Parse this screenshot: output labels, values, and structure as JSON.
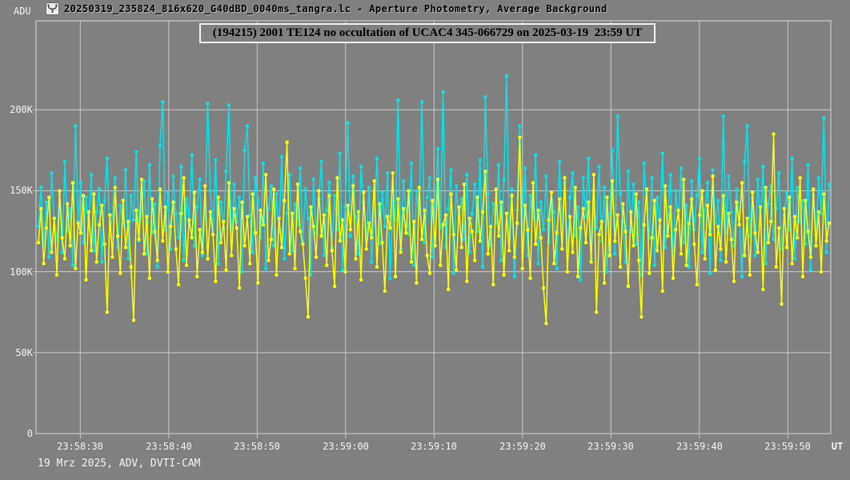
{
  "window": {
    "title": "20250319_235824_816x620_G40dBD_0040ms_tangra.lc - Aperture Photometry, Average Background",
    "app_icon": "tangra-app-icon"
  },
  "footer": {
    "text": "19 Mrz 2025, ADV, DVTI-CAM"
  },
  "colors": {
    "background": "#808080",
    "grid": "#c9c9c9",
    "axis_text": "#f2f2f2",
    "series_cyan": "#00e5ee",
    "series_yellow": "#ffff00"
  },
  "chart_data": {
    "type": "line",
    "title": "(194215) 2001 TE124 no occultation of UCAC4 345-066729 on 2025-03-19  23:59 UT",
    "ylabel": "ADU",
    "xlabel": "UT",
    "grid": true,
    "legend": "none",
    "x_range": [
      "23:58:25",
      "23:59:55"
    ],
    "ylim_kadu": [
      0,
      255
    ],
    "y_gridline_values_kadu": [
      50,
      100,
      150,
      200
    ],
    "y_tick_labels": [
      "0",
      "50K",
      "100K",
      "150K",
      "200K"
    ],
    "x_tick_labels": [
      "23:58:30",
      "23:58:40",
      "23:58:50",
      "23:59:00",
      "23:59:10",
      "23:59:20",
      "23:59:30",
      "23:59:40",
      "23:59:50"
    ],
    "series": [
      {
        "name": "photometry-series-cyan",
        "color": "#00e5ee",
        "unit": "kADU",
        "values_kadu": [
          128,
          152,
          117,
          143,
          109,
          161,
          133,
          120,
          148,
          112,
          168,
          125,
          139,
          104,
          190,
          131,
          155,
          118,
          146,
          127,
          160,
          113,
          137,
          151,
          106,
          144,
          170,
          122,
          135,
          158,
          115,
          141,
          129,
          163,
          108,
          147,
          132,
          174,
          119,
          138,
          156,
          111,
          166,
          124,
          142,
          103,
          178,
          205,
          126,
          149,
          114,
          159,
          136,
          121,
          165,
          107,
          145,
          130,
          172,
          116,
          140,
          157,
          110,
          134,
          204,
          150,
          123,
          169,
          105,
          143,
          127,
          162,
          203,
          118,
          154,
          131,
          146,
          100,
          175,
          190,
          135,
          112,
          158,
          144,
          121,
          167,
          102,
          139,
          153,
          116,
          148,
          125,
          171,
          108,
          136,
          160,
          113,
          142,
          129,
          164,
          119,
          151,
          133,
          98,
          157,
          124,
          145,
          168,
          110,
          138,
          155,
          115,
          147,
          126,
          173,
          101,
          140,
          192,
          122,
          159,
          134,
          111,
          165,
          143,
          120,
          152,
          106,
          137,
          170,
          117,
          149,
          128,
          161,
          96,
          144,
          132,
          206,
          114,
          156,
          138,
          123,
          167,
          104,
          150,
          135,
          205,
          118,
          146,
          158,
          109,
          141,
          176,
          127,
          211,
          115,
          139,
          163,
          99,
          153,
          131,
          145,
          120,
          160,
          112,
          136,
          154,
          125,
          169,
          103,
          208,
          148,
          116,
          142,
          130,
          166,
          107,
          157,
          221,
          121,
          151,
          97,
          138,
          190,
          124,
          164,
          110,
          147,
          133,
          172,
          105,
          143,
          126,
          159,
          118,
          149,
          137,
          102,
          168,
          129,
          155,
          113,
          146,
          161,
          122,
          140,
          95,
          158,
          134,
          170,
          108,
          144,
          127,
          165,
          119,
          152,
          100,
          136,
          175,
          111,
          196,
          148,
          131,
          106,
          162,
          125,
          154,
          117,
          143,
          98,
          167,
          139,
          121,
          158,
          104,
          146,
          128,
          173,
          115,
          135,
          160,
          109,
          150,
          132,
          164,
          118,
          141,
          103,
          156,
          126,
          147,
          170,
          112,
          138,
          155,
          99,
          163,
          130,
          144,
          107,
          196,
          124,
          159,
          137,
          116,
          151,
          134,
          97,
          168,
          190,
          122,
          146,
          110,
          157,
          129,
          165,
          105,
          142,
          153,
          120,
          139,
          161,
          114,
          135,
          149,
          126,
          170,
          108,
          152,
          131,
          144,
          117,
          166,
          101,
          147,
          123,
          158,
          136,
          195,
          112,
          154
        ]
      },
      {
        "name": "photometry-series-yellow",
        "color": "#ffff00",
        "unit": "kADU",
        "values_kadu": [
          118,
          139,
          105,
          127,
          146,
          112,
          133,
          98,
          150,
          121,
          108,
          142,
          116,
          155,
          102,
          130,
          124,
          147,
          95,
          137,
          113,
          148,
          106,
          129,
          141,
          117,
          75,
          135,
          109,
          152,
          122,
          99,
          144,
          115,
          131,
          103,
          70,
          138,
          120,
          157,
          111,
          134,
          96,
          145,
          125,
          107,
          151,
          119,
          140,
          100,
          128,
          143,
          114,
          92,
          136,
          158,
          104,
          132,
          121,
          149,
          97,
          126,
          112,
          153,
          108,
          137,
          123,
          94,
          146,
          118,
          131,
          101,
          155,
          110,
          139,
          127,
          90,
          143,
          116,
          134,
          105,
          148,
          124,
          93,
          138,
          129,
          160,
          107,
          120,
          151,
          98,
          133,
          115,
          144,
          180,
          111,
          136,
          102,
          154,
          125,
          117,
          96,
          72,
          140,
          128,
          109,
          150,
          122,
          135,
          104,
          147,
          113,
          91,
          158,
          119,
          132,
          100,
          141,
          126,
          153,
          108,
          137,
          95,
          149,
          114,
          130,
          121,
          156,
          103,
          142,
          118,
          88,
          134,
          127,
          161,
          97,
          145,
          112,
          139,
          124,
          150,
          106,
          131,
          93,
          152,
          120,
          138,
          110,
          99,
          144,
          116,
          157,
          104,
          129,
          135,
          89,
          148,
          123,
          101,
          140,
          115,
          154,
          94,
          133,
          125,
          107,
          146,
          119,
          137,
          162,
          111,
          128,
          92,
          151,
          122,
          143,
          98,
          136,
          113,
          147,
          109,
          130,
          183,
          102,
          141,
          126,
          96,
          155,
          117,
          138,
          121,
          90,
          68,
          132,
          149,
          105,
          124,
          145,
          114,
          158,
          100,
          134,
          112,
          152,
          97,
          127,
          139,
          118,
          143,
          106,
          160,
          75,
          123,
          131,
          93,
          146,
          110,
          156,
          119,
          135,
          103,
          142,
          125,
          91,
          137,
          116,
          148,
          107,
          72,
          129,
          151,
          99,
          121,
          144,
          113,
          132,
          88,
          153,
          122,
          140,
          96,
          126,
          138,
          111,
          157,
          104,
          130,
          145,
          117,
          92,
          135,
          150,
          108,
          141,
          123,
          159,
          101,
          128,
          114,
          147,
          106,
          136,
          120,
          94,
          143,
          129,
          155,
          110,
          133,
          98,
          149,
          124,
          112,
          140,
          89,
          152,
          118,
          131,
          185,
          103,
          127,
          80,
          139,
          115,
          146,
          105,
          134,
          121,
          158,
          97,
          144,
          125,
          109,
          151,
          116,
          137,
          100,
          148,
          119,
          130
        ]
      }
    ]
  }
}
